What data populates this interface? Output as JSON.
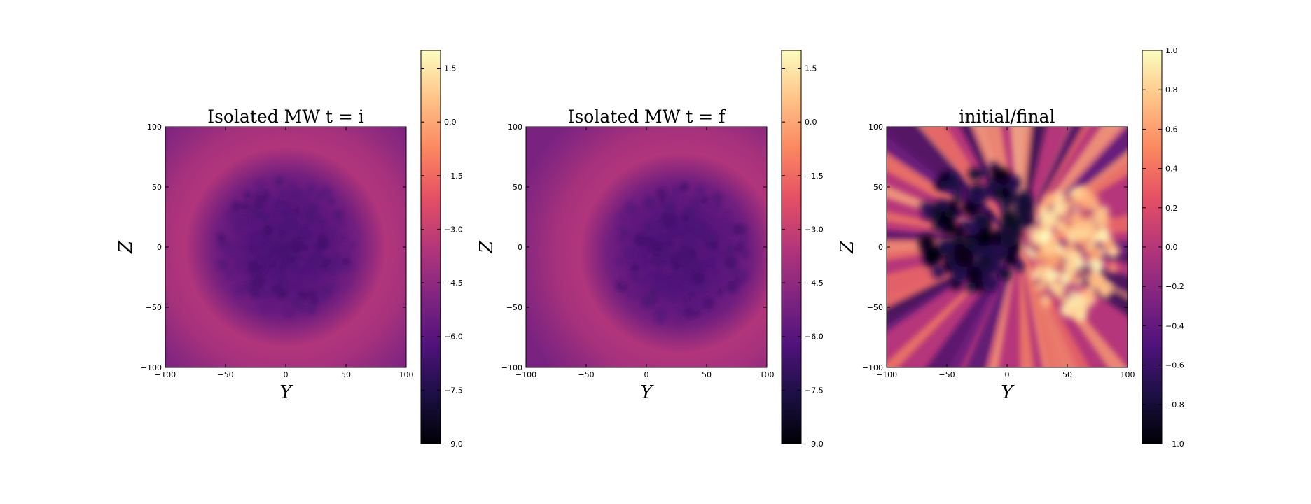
{
  "chart_data": [
    {
      "type": "heatmap",
      "title": "Isolated MW t = i",
      "xlabel": "Y",
      "ylabel": "Z",
      "xlim": [
        -100,
        100
      ],
      "ylim": [
        -100,
        100
      ],
      "x_ticks": [
        -100,
        -50,
        0,
        50,
        100
      ],
      "y_ticks": [
        -100,
        -50,
        0,
        50,
        100
      ],
      "x_tick_labels": [
        "−100",
        "−50",
        "0",
        "50",
        "100"
      ],
      "y_tick_labels": [
        "−100",
        "−50",
        "0",
        "50",
        "100"
      ],
      "colorbar": {
        "range": [
          -9.0,
          2.0
        ],
        "ticks": [
          -9.0,
          -7.5,
          -6.0,
          -4.5,
          -3.0,
          -1.5,
          0.0,
          1.5
        ],
        "tick_labels": [
          "−9.0",
          "−7.5",
          "−6.0",
          "−4.5",
          "−3.0",
          "−1.5",
          "0.0",
          "1.5"
        ]
      },
      "colormap": "magma",
      "pattern": {
        "kind": "radial",
        "center": [
          0,
          0
        ],
        "center_value": -6.5,
        "outer_value": -3.8,
        "ring_value": -3.6
      }
    },
    {
      "type": "heatmap",
      "title": "Isolated MW t = f",
      "xlabel": "Y",
      "ylabel": "Z",
      "xlim": [
        -100,
        100
      ],
      "ylim": [
        -100,
        100
      ],
      "x_ticks": [
        -100,
        -50,
        0,
        50,
        100
      ],
      "y_ticks": [
        -100,
        -50,
        0,
        50,
        100
      ],
      "x_tick_labels": [
        "−100",
        "−50",
        "0",
        "50",
        "100"
      ],
      "y_tick_labels": [
        "−100",
        "−50",
        "0",
        "50",
        "100"
      ],
      "colorbar": {
        "range": [
          -9.0,
          2.0
        ],
        "ticks": [
          -9.0,
          -7.5,
          -6.0,
          -4.5,
          -3.0,
          -1.5,
          0.0,
          1.5
        ],
        "tick_labels": [
          "−9.0",
          "−7.5",
          "−6.0",
          "−4.5",
          "−3.0",
          "−1.5",
          "0.0",
          "1.5"
        ]
      },
      "colormap": "magma",
      "pattern": {
        "kind": "radial",
        "center": [
          28,
          -5
        ],
        "center_value": -6.5,
        "outer_value": -3.8,
        "ring_value": -3.6
      }
    },
    {
      "type": "heatmap",
      "title": "initial/final",
      "xlabel": "Y",
      "ylabel": "Z",
      "xlim": [
        -100,
        100
      ],
      "ylim": [
        -100,
        100
      ],
      "x_ticks": [
        -100,
        -50,
        0,
        50,
        100
      ],
      "y_ticks": [
        -100,
        -50,
        0,
        50,
        100
      ],
      "x_tick_labels": [
        "−100",
        "−50",
        "0",
        "50",
        "100"
      ],
      "y_tick_labels": [
        "−100",
        "−50",
        "0",
        "50",
        "100"
      ],
      "colorbar": {
        "range": [
          -1.0,
          1.0
        ],
        "ticks": [
          -1.0,
          -0.8,
          -0.6,
          -0.4,
          -0.2,
          0.0,
          0.2,
          0.4,
          0.6,
          0.8,
          1.0
        ],
        "tick_labels": [
          "−1.0",
          "−0.8",
          "−0.6",
          "−0.4",
          "−0.2",
          "0.0",
          "0.2",
          "0.4",
          "0.6",
          "0.8",
          "1.0"
        ]
      },
      "colormap": "magma",
      "pattern": {
        "kind": "ratio",
        "low_center": [
          -25,
          15
        ],
        "low_value": -1.0,
        "high_center": [
          55,
          -5
        ],
        "high_value": 1.0,
        "background_value": 0.0
      }
    }
  ],
  "colors": {
    "magma": [
      "#000004",
      "#1c1044",
      "#4f127b",
      "#812581",
      "#b5367a",
      "#e55064",
      "#fb8761",
      "#fec287",
      "#fcfdbf"
    ]
  }
}
